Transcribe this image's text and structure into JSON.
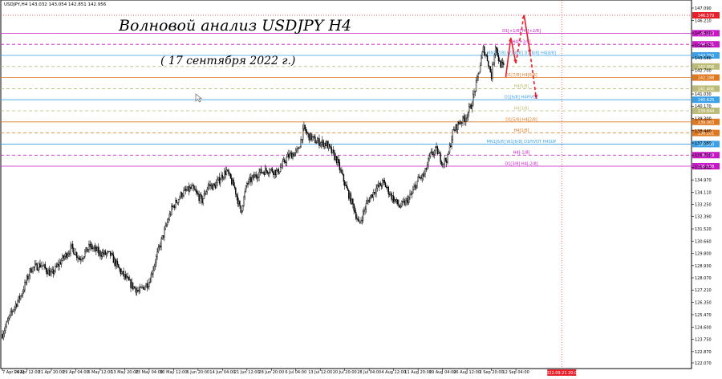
{
  "window": {
    "symbol_header": "USDJPY,H4  143.032 143.054 142.851 142.956"
  },
  "annotations": {
    "title": "Волновой анализ USDJPY H4",
    "date": "( 17 сентября 2022 г.)"
  },
  "colors": {
    "candle": "#000000",
    "axis": "#000000",
    "grid": "#f2f2f2",
    "forecast": "#e8202a",
    "magenta": "#c818c8",
    "blue": "#3aa0e8",
    "orange": "#e07820",
    "olive": "#bcbc78",
    "cursor_line": "#e8202a"
  },
  "chart_data": {
    "type": "candlestick",
    "title": "Волновой анализ USDJPY H4",
    "subtitle": "( 17 сентября 2022 г.)",
    "ylim": [
      122.07,
      147.09
    ],
    "y_ticks": [
      "147.090",
      "146.210",
      "145.330",
      "144.460",
      "143.580",
      "142.700",
      "141.030",
      "140.170",
      "139.300",
      "138.440",
      "137.580",
      "136.720",
      "135.840",
      "134.970",
      "134.110",
      "133.250",
      "132.390",
      "131.520",
      "130.660",
      "129.800",
      "128.930",
      "128.070",
      "127.210",
      "126.350",
      "125.470",
      "124.600",
      "123.750",
      "122.870",
      "122.070"
    ],
    "x_ticks": [
      "7 Apr 2022",
      "14 Apr 12:00",
      "21 Apr 20:00",
      "29 Apr 04:00",
      "6 May 12:00",
      "13 May 20:00",
      "23 May 04:00",
      "30 May 12:00",
      "6 Jun 20:00",
      "14 Jun 04:00",
      "21 Jun 12:00",
      "28 Jun 20:00",
      "6 Jul 04:00",
      "13 Jul 12:00",
      "20 Jul 20:00",
      "28 Jul 04:00",
      "4 Aug 12:00",
      "11 Aug 20:00",
      "19 Aug 04:00",
      "26 Aug 12:00",
      "2 Sep 20:00",
      "12 Sep 04:00"
    ],
    "close_path": [
      {
        "i": 0,
        "v": 124.1
      },
      {
        "i": 10,
        "v": 125.8
      },
      {
        "i": 18,
        "v": 126.8
      },
      {
        "i": 28,
        "v": 128.7
      },
      {
        "i": 38,
        "v": 129.0
      },
      {
        "i": 48,
        "v": 128.3
      },
      {
        "i": 58,
        "v": 129.3
      },
      {
        "i": 68,
        "v": 130.2
      },
      {
        "i": 76,
        "v": 129.4
      },
      {
        "i": 86,
        "v": 130.3
      },
      {
        "i": 96,
        "v": 129.8
      },
      {
        "i": 106,
        "v": 129.7
      },
      {
        "i": 116,
        "v": 128.5
      },
      {
        "i": 126,
        "v": 127.6
      },
      {
        "i": 134,
        "v": 127.1
      },
      {
        "i": 144,
        "v": 127.8
      },
      {
        "i": 154,
        "v": 130.2
      },
      {
        "i": 166,
        "v": 132.9
      },
      {
        "i": 176,
        "v": 134.0
      },
      {
        "i": 186,
        "v": 134.4
      },
      {
        "i": 196,
        "v": 133.5
      },
      {
        "i": 202,
        "v": 134.6
      },
      {
        "i": 208,
        "v": 134.5
      },
      {
        "i": 216,
        "v": 135.3
      },
      {
        "i": 220,
        "v": 135.6
      },
      {
        "i": 228,
        "v": 134.4
      },
      {
        "i": 234,
        "v": 132.7
      },
      {
        "i": 240,
        "v": 134.7
      },
      {
        "i": 252,
        "v": 135.5
      },
      {
        "i": 262,
        "v": 135.7
      },
      {
        "i": 270,
        "v": 135.5
      },
      {
        "i": 280,
        "v": 136.6
      },
      {
        "i": 290,
        "v": 137.0
      },
      {
        "i": 296,
        "v": 138.6
      },
      {
        "i": 300,
        "v": 138.1
      },
      {
        "i": 308,
        "v": 137.7
      },
      {
        "i": 318,
        "v": 137.5
      },
      {
        "i": 328,
        "v": 136.4
      },
      {
        "i": 338,
        "v": 134.3
      },
      {
        "i": 345,
        "v": 133.0
      },
      {
        "i": 350,
        "v": 131.8
      },
      {
        "i": 358,
        "v": 133.4
      },
      {
        "i": 366,
        "v": 134.3
      },
      {
        "i": 374,
        "v": 134.8
      },
      {
        "i": 382,
        "v": 133.8
      },
      {
        "i": 390,
        "v": 133.1
      },
      {
        "i": 396,
        "v": 133.4
      },
      {
        "i": 402,
        "v": 134.0
      },
      {
        "i": 408,
        "v": 135.0
      },
      {
        "i": 414,
        "v": 135.3
      },
      {
        "i": 420,
        "v": 136.7
      },
      {
        "i": 426,
        "v": 137.1
      },
      {
        "i": 432,
        "v": 136.2
      },
      {
        "i": 437,
        "v": 136.5
      },
      {
        "i": 442,
        "v": 138.3
      },
      {
        "i": 448,
        "v": 139.0
      },
      {
        "i": 454,
        "v": 139.3
      },
      {
        "i": 460,
        "v": 140.2
      },
      {
        "i": 466,
        "v": 142.0
      },
      {
        "i": 472,
        "v": 144.2
      },
      {
        "i": 476,
        "v": 143.5
      },
      {
        "i": 480,
        "v": 142.3
      },
      {
        "i": 484,
        "v": 144.5
      },
      {
        "i": 488,
        "v": 143.2
      },
      {
        "i": 492,
        "v": 142.9
      }
    ],
    "levels": [
      {
        "price": 146.579,
        "label": "",
        "color": "#e8202a",
        "style": "dotted",
        "tag": "146.579"
      },
      {
        "price": 145.313,
        "label": "D1[+1/8] H4[+2/8]",
        "color": "#c818c8",
        "style": "solid",
        "tag": "145.313"
      },
      {
        "price": 144.531,
        "label": "H4[+1/8]",
        "color": "#c818c8",
        "style": "dashed",
        "tag": "144.531"
      },
      {
        "price": 143.75,
        "label": "MN1[7/8] W1[8/8] D1[8/8] H4[8/8]",
        "color": "#3aa0e8",
        "style": "solid",
        "tag": "143.750"
      },
      {
        "price": 142.969,
        "label": "",
        "color": "#bcbc78",
        "style": "dashed",
        "tag": "142.956"
      },
      {
        "price": 142.188,
        "label": "D1[7/8] H4[6/8]",
        "color": "#e07820",
        "style": "solid",
        "tag": "142.188"
      },
      {
        "price": 141.406,
        "label": "H4[5/8]",
        "color": "#bcbc78",
        "style": "dashed",
        "tag": "141.406"
      },
      {
        "price": 140.625,
        "label": "D1[6/8] H4PIVOT",
        "color": "#3aa0e8",
        "style": "solid",
        "tag": "140.625"
      },
      {
        "price": 139.844,
        "label": "H4[3/8]",
        "color": "#bcbc78",
        "style": "dashed",
        "tag": "139.844"
      },
      {
        "price": 139.063,
        "label": "D1[5/8] H4[2/8]",
        "color": "#e07820",
        "style": "solid",
        "tag": "139.063"
      },
      {
        "price": 138.281,
        "label": "H4[1/8]",
        "color": "#e07820",
        "style": "dashed",
        "tag": "138.281"
      },
      {
        "price": 137.5,
        "label": "MN1[6/8] W1[6/8] D1PIVOT H4SUP",
        "color": "#3aa0e8",
        "style": "solid",
        "tag": "137.500"
      },
      {
        "price": 136.719,
        "label": "H4[-1/8]",
        "color": "#c818c8",
        "style": "dashed",
        "tag": "136.719"
      },
      {
        "price": 135.938,
        "label": "D1[3/8] H4[-2/8]",
        "color": "#c818c8",
        "style": "solid",
        "tag": "135.938"
      }
    ],
    "forecast": [
      {
        "t": 494,
        "v": 142.2
      },
      {
        "t": 499,
        "v": 145.0
      },
      {
        "t": 504,
        "v": 143.2
      },
      {
        "t": 512,
        "v": 146.6
      },
      {
        "t": 518,
        "v": 143.9
      },
      {
        "t": 524,
        "v": 140.7
      }
    ],
    "forecast_time_tag": "2022.09.21 20:00",
    "grid": false
  }
}
